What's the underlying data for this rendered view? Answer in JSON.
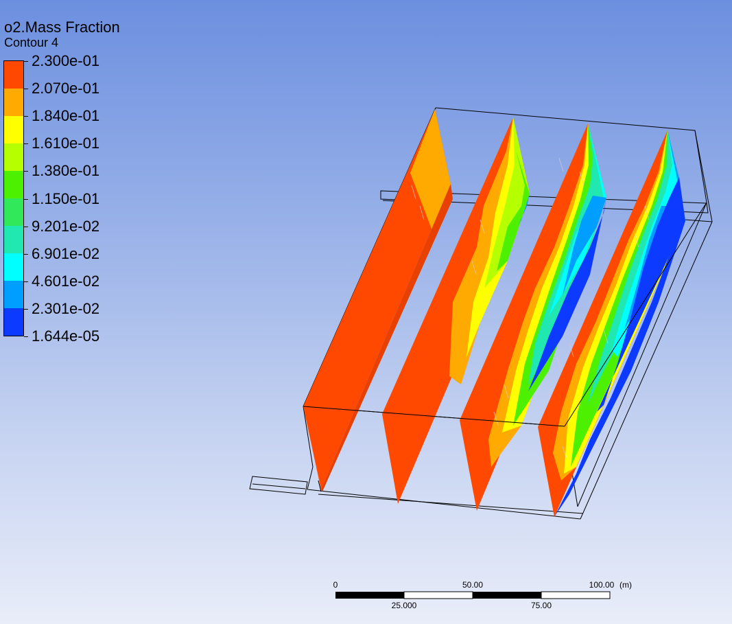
{
  "legend": {
    "title": "o2.Mass Fraction",
    "subtitle": "Contour 4",
    "labels": [
      "2.300e-01",
      "2.070e-01",
      "1.840e-01",
      "1.610e-01",
      "1.380e-01",
      "1.150e-01",
      "9.201e-02",
      "6.901e-02",
      "4.601e-02",
      "2.301e-02",
      "1.644e-05"
    ],
    "colors": [
      "#ff4800",
      "#ffaa00",
      "#ffff00",
      "#b5ff00",
      "#4cf000",
      "#30e85a",
      "#21e8b0",
      "#00ffff",
      "#009eff",
      "#0c3bff"
    ]
  },
  "scale": {
    "ticks_top": [
      "0",
      "50.00",
      "100.00"
    ],
    "ticks_bottom": [
      "25.000",
      "75.00"
    ],
    "unit": "(m)"
  }
}
